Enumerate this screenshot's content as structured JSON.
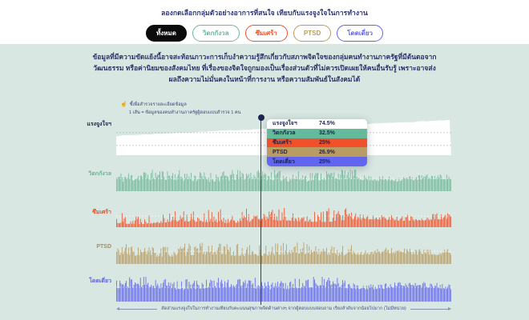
{
  "header": {
    "title": "ลองกดเลือกกลุ่มตัวอย่างอาการที่สนใจ เทียบกับแรงจูงใจในการทำงาน",
    "filters": [
      {
        "label": "ทั้งหมด",
        "color": "#0b0b0b",
        "selected": true
      },
      {
        "label": "วิตกกังวล",
        "color": "#6fb79a",
        "selected": false
      },
      {
        "label": "ซึมเศร้า",
        "color": "#ee5027",
        "selected": false
      },
      {
        "label": "PTSD",
        "color": "#b89a5e",
        "selected": false
      },
      {
        "label": "โดดเดี่ยว",
        "color": "#6064ee",
        "selected": false
      }
    ]
  },
  "body_text": "ข้อมูลที่มีความขัดแย้งนี้อาจสะท้อนภาวะการเก็บงำความรู้สึกเกี่ยวกับสภาพจิตใจของกลุ่มคนทำงานภาครัฐที่มีต้นตอจากวัฒนธรรม หรือค่านิยมของสังคมไทย ที่เรื่องของจิตใจถูกมองเป็นเรื่องส่วนตัวที่ไม่ควรเปิดเผยให้คนอื่นรับรู้ เพราะอาจส่งผลถึงความไม่มั่นคงในหน้าที่การงาน หรือความสัมพันธ์ในสังคมได้",
  "hint": {
    "icon": "pointer-hand",
    "line1": "ชี้เพื่อสำรวจรายละเอียดข้อมูล",
    "line2": "1 เส้น = ข้อมูลของคนทำงานภาครัฐผู้ตอบแบบสำรวจ 1 คน"
  },
  "chart_data": {
    "type": "strip-multiples",
    "description": "Five small-multiple strip/area plots: each vertical line is one government-sector worker, sorted left-to-right by ascending work motivation. A hover cursor at 43% across shows per-series values.",
    "xlabel": "สัดส่วนแรงจูงใจในการทำงานเทียบกับคะแนนสุขภาพจิตด้านต่างๆ จากผู้ตอบแบบสอบถาม เรียงลำดับจากน้อยไปมาก (ไม่มีหน่วย)",
    "legend_position": "top-left-hint",
    "grid": "dashed-horizontal-guides",
    "cursor_x_fraction": 0.43,
    "series": [
      {
        "label": "แรงจูงใจฯ",
        "key": "motivation",
        "kind": "area",
        "color": "#ffffff",
        "label_color": "#1d2550",
        "value_at_cursor": "74.5%",
        "profile_range": [
          0.55,
          1.0
        ],
        "seed": 7
      },
      {
        "label": "วิตกกังวล",
        "key": "anxiety",
        "kind": "strip",
        "color": "#73b79a",
        "label_color": "#6fb396",
        "value_at_cursor": "32.5%",
        "base": 0.46,
        "base_slope": 0.04,
        "amp": 0.5,
        "tail": 1.3,
        "seed": 11
      },
      {
        "label": "ซึมเศร้า",
        "key": "depression",
        "kind": "strip",
        "color": "#ef5128",
        "label_color": "#ee4e24",
        "value_at_cursor": "25%",
        "base": 0.2,
        "base_slope": 0.2,
        "amp": 0.72,
        "tail": 2.4,
        "seed": 22
      },
      {
        "label": "PTSD",
        "key": "ptsd",
        "kind": "strip",
        "color": "#b99c63",
        "label_color": "#aa8d52",
        "value_at_cursor": "26.9%",
        "base": 0.36,
        "base_slope": 0.1,
        "amp": 0.56,
        "tail": 1.9,
        "seed": 33
      },
      {
        "label": "โดดเดี่ยว",
        "key": "loneliness",
        "kind": "strip",
        "color": "#6367ec",
        "label_color": "#5b60e8",
        "value_at_cursor": "25%",
        "base": 0.52,
        "base_slope": 0.02,
        "amp": 0.44,
        "tail": 1.6,
        "seed": 44
      }
    ],
    "tooltip": {
      "rows": [
        {
          "label": "แรงจูงใจฯ",
          "value": "74.5%",
          "bg": "#ffffff"
        },
        {
          "label": "วิตกกังวล",
          "value": "32.5%",
          "bg": "#63bb9b"
        },
        {
          "label": "ซึมเศร้า",
          "value": "25%",
          "bg": "#f0512a"
        },
        {
          "label": "PTSD",
          "value": "26.9%",
          "bg": "#b99c63"
        },
        {
          "label": "โดดเดี่ยว",
          "value": "25%",
          "bg": "#6165f0"
        }
      ]
    }
  },
  "colors": {
    "section_bg": "#d9e7e2",
    "text": "#2b3270",
    "cursor": "#333c63"
  }
}
